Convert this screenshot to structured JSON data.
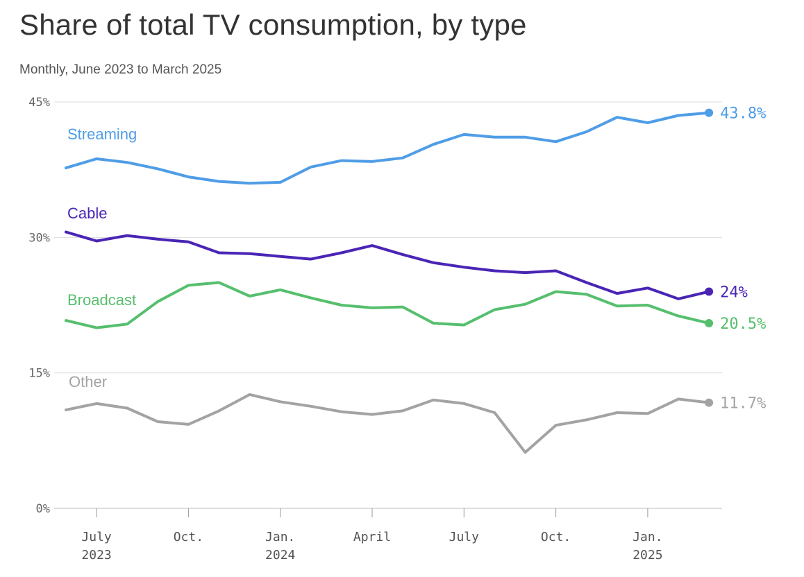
{
  "title": "Share of total TV consumption, by type",
  "subtitle": "Monthly, June 2023 to March 2025",
  "chart_data": {
    "type": "line",
    "title": "Share of total TV consumption, by type",
    "subtitle": "Monthly, June 2023 to March 2025",
    "xlabel": "",
    "ylabel": "",
    "ylim": [
      0,
      45
    ],
    "yticks": [
      {
        "value": 0,
        "label": "0%"
      },
      {
        "value": 15,
        "label": "15%"
      },
      {
        "value": 30,
        "label": "30%"
      },
      {
        "value": 45,
        "label": "45%"
      }
    ],
    "x": [
      "2023-06",
      "2023-07",
      "2023-08",
      "2023-09",
      "2023-10",
      "2023-11",
      "2023-12",
      "2024-01",
      "2024-02",
      "2024-03",
      "2024-04",
      "2024-05",
      "2024-06",
      "2024-07",
      "2024-08",
      "2024-09",
      "2024-10",
      "2024-11",
      "2024-12",
      "2025-01",
      "2025-02",
      "2025-03"
    ],
    "xticks": [
      {
        "x": "2023-07",
        "line1": "July",
        "line2": "2023"
      },
      {
        "x": "2023-10",
        "line1": "Oct.",
        "line2": ""
      },
      {
        "x": "2024-01",
        "line1": "Jan.",
        "line2": "2024"
      },
      {
        "x": "2024-04",
        "line1": "April",
        "line2": ""
      },
      {
        "x": "2024-07",
        "line1": "July",
        "line2": ""
      },
      {
        "x": "2024-10",
        "line1": "Oct.",
        "line2": ""
      },
      {
        "x": "2025-01",
        "line1": "Jan.",
        "line2": "2025"
      }
    ],
    "grid": true,
    "legend": "inline",
    "series": [
      {
        "name": "Streaming",
        "color": "#4f9de6",
        "end_label": "43.8%",
        "values": [
          37.7,
          38.7,
          38.3,
          37.6,
          36.7,
          36.2,
          36.0,
          36.1,
          37.8,
          38.5,
          38.4,
          38.8,
          40.3,
          41.4,
          41.1,
          41.1,
          40.6,
          41.7,
          43.3,
          42.7,
          43.5,
          43.8
        ]
      },
      {
        "name": "Cable",
        "color": "#4a25b5",
        "end_label": "24%",
        "values": [
          30.6,
          29.6,
          30.2,
          29.8,
          29.5,
          28.3,
          28.2,
          27.9,
          27.6,
          28.3,
          29.1,
          28.1,
          27.2,
          26.7,
          26.3,
          26.1,
          26.3,
          25.0,
          23.8,
          24.4,
          23.2,
          24.0
        ]
      },
      {
        "name": "Broadcast",
        "color": "#56bf6e",
        "end_label": "20.5%",
        "values": [
          20.8,
          20.0,
          20.4,
          22.9,
          24.7,
          25.0,
          23.5,
          24.2,
          23.3,
          22.5,
          22.2,
          22.3,
          20.5,
          20.3,
          22.0,
          22.6,
          24.0,
          23.7,
          22.4,
          22.5,
          21.3,
          20.5
        ]
      },
      {
        "name": "Other",
        "color": "#a3a3a3",
        "end_label": "11.7%",
        "values": [
          10.9,
          11.6,
          11.1,
          9.6,
          9.3,
          10.8,
          12.6,
          11.8,
          11.3,
          10.7,
          10.4,
          10.8,
          12.0,
          11.6,
          10.6,
          6.2,
          9.2,
          9.8,
          10.6,
          10.5,
          12.1,
          11.7
        ]
      }
    ]
  }
}
